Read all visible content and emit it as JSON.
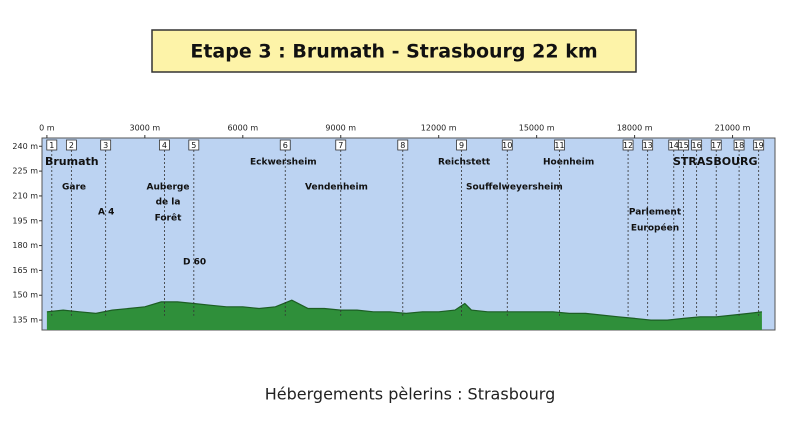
{
  "chart_data": {
    "type": "area",
    "title": "Etape 3 : Brumath - Strasbourg  22 km",
    "note": "Hébergements pèlerins : Strasbourg",
    "x": [
      0,
      500,
      1000,
      1500,
      2000,
      2500,
      3000,
      3500,
      4000,
      4500,
      5000,
      5500,
      6000,
      6500,
      7000,
      7500,
      8000,
      8500,
      9000,
      9500,
      10000,
      10500,
      11000,
      11500,
      12000,
      12500,
      12800,
      13000,
      13500,
      14000,
      14500,
      15000,
      15500,
      16000,
      16500,
      17000,
      17500,
      18000,
      18500,
      19000,
      19500,
      20000,
      20500,
      21000,
      21500,
      21900
    ],
    "values": [
      140,
      141,
      140,
      139,
      141,
      142,
      143,
      146,
      146,
      145,
      144,
      143,
      143,
      142,
      143,
      147,
      142,
      142,
      141,
      141,
      140,
      140,
      139,
      140,
      140,
      141,
      145,
      141,
      140,
      140,
      140,
      140,
      140,
      139,
      139,
      138,
      137,
      136,
      135,
      135,
      136,
      137,
      137,
      138,
      139,
      140
    ],
    "color": "#2f8f3a",
    "xlim": [
      -150,
      22300
    ],
    "ylim": [
      129,
      245
    ],
    "xticks": [
      {
        "value": 0,
        "label": "0 m"
      },
      {
        "value": 3000,
        "label": "3000 m"
      },
      {
        "value": 6000,
        "label": "6000 m"
      },
      {
        "value": 9000,
        "label": "9000 m"
      },
      {
        "value": 12000,
        "label": "12000 m"
      },
      {
        "value": 15000,
        "label": "15000 m"
      },
      {
        "value": 18000,
        "label": "18000 m"
      },
      {
        "value": 21000,
        "label": "21000 m"
      }
    ],
    "yticks": [
      {
        "value": 240,
        "label": "240 m"
      },
      {
        "value": 225,
        "label": "225 m"
      },
      {
        "value": 210,
        "label": "210 m"
      },
      {
        "value": 195,
        "label": "195 m"
      },
      {
        "value": 180,
        "label": "180 m"
      },
      {
        "value": 165,
        "label": "165 m"
      },
      {
        "value": 150,
        "label": "150 m"
      },
      {
        "value": 135,
        "label": "135 m"
      }
    ],
    "waypoints": [
      "1",
      "2",
      "3",
      "4",
      "5",
      "6",
      "7",
      "8",
      "9",
      "10",
      "11",
      "12",
      "13",
      "14",
      "15",
      "16",
      "17",
      "18",
      "19"
    ],
    "waypoint_x": [
      150,
      750,
      1800,
      3600,
      4500,
      7300,
      9000,
      10900,
      12700,
      14100,
      15700,
      17800,
      18400,
      19200,
      19500,
      19900,
      20500,
      21200,
      21800
    ],
    "places": [
      "Brumath",
      "Gare",
      "A 4",
      "Auberge",
      "de la",
      "Forêt",
      "D 60",
      "Eckwersheim",
      "Vendenheim",
      "Reichstett",
      "Souffelweyersheim",
      "Hoenheim",
      "STRASBOURG",
      "Parlement",
      "Européen"
    ]
  }
}
